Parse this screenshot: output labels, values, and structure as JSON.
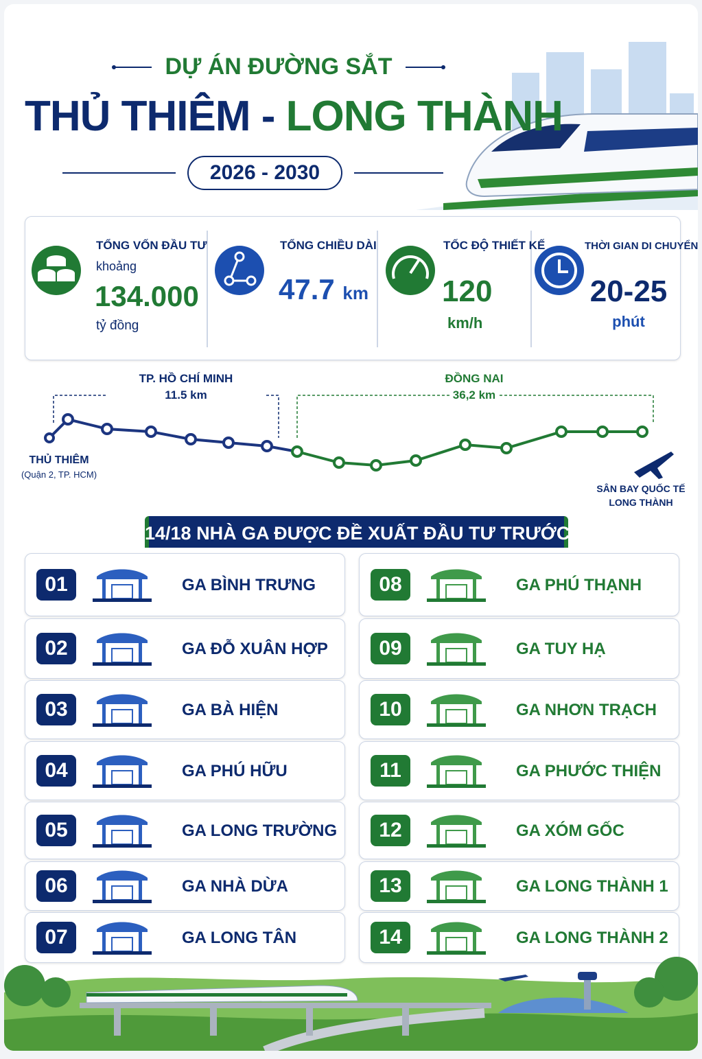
{
  "header": {
    "kicker": "DỰ ÁN ĐƯỜNG SẮT",
    "title_part1": "THỦ THIÊM",
    "separator": "-",
    "title_part2": "LONG THÀNH",
    "period": "2026 - 2030"
  },
  "stats": [
    {
      "label": "TỔNG VỐN ĐẦU TƯ",
      "prefix": "khoảng",
      "value": "134.000",
      "unit": "tỷ đồng"
    },
    {
      "label": "TỔNG CHIỀU DÀI",
      "value": "47.7",
      "unit": "km"
    },
    {
      "label": "TỐC ĐỘ THIẾT KẾ",
      "value": "120",
      "unit": "km/h"
    },
    {
      "label": "THỜI GIAN DI CHUYỂN",
      "value": "20-25",
      "unit": "phút"
    }
  ],
  "route": {
    "segments": [
      {
        "name": "TP. HỒ CHÍ MINH",
        "length": "11.5 km"
      },
      {
        "name": "ĐỒNG NAI",
        "length": "36,2 km"
      }
    ],
    "start": {
      "name": "THỦ THIÊM",
      "note": "(Quận 2, TP. HCM)"
    },
    "end": {
      "lines": [
        "SÂN BAY QUỐC TẾ",
        "LONG THÀNH"
      ]
    }
  },
  "stations": {
    "title": "14/18 NHÀ GA ĐƯỢC ĐỀ XUẤT ĐẦU TƯ TRƯỚC",
    "items": [
      {
        "number": "01",
        "name": "GA BÌNH TRƯNG"
      },
      {
        "number": "02",
        "name": "GA ĐỖ XUÂN HỢP"
      },
      {
        "number": "03",
        "name": "GA BÀ HIỆN"
      },
      {
        "number": "04",
        "name": "GA PHÚ HỮU"
      },
      {
        "number": "05",
        "name": "GA LONG TRƯỜNG"
      },
      {
        "number": "06",
        "name": "GA NHÀ DỪA"
      },
      {
        "number": "07",
        "name": "GA LONG TÂN"
      },
      {
        "number": "08",
        "name": "GA PHÚ THẠNH"
      },
      {
        "number": "09",
        "name": "GA TUY HẠ"
      },
      {
        "number": "10",
        "name": "GA NHƠN TRẠCH"
      },
      {
        "number": "11",
        "name": "GA PHƯỚC THIỆN"
      },
      {
        "number": "12",
        "name": "GA XÓM GỐC"
      },
      {
        "number": "13",
        "name": "GA LONG THÀNH 1"
      },
      {
        "number": "14",
        "name": "GA LONG THÀNH 2"
      }
    ]
  }
}
